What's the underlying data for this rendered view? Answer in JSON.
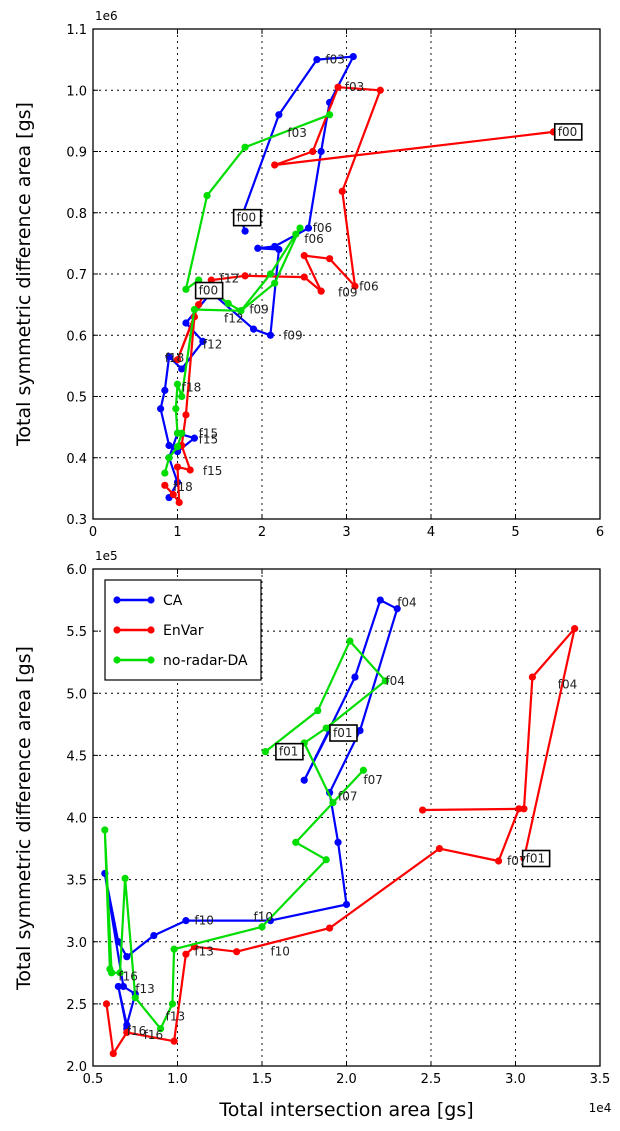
{
  "chart_data": [
    {
      "type": "line",
      "xlim": [
        0,
        60000
      ],
      "ylim": [
        300000,
        1100000
      ],
      "x_ticks": [
        0,
        10000,
        20000,
        30000,
        40000,
        50000,
        60000
      ],
      "x_tick_labels": [
        "0",
        "1",
        "2",
        "3",
        "4",
        "5",
        "6"
      ],
      "y_ticks": [
        300000,
        400000,
        500000,
        600000,
        700000,
        800000,
        900000,
        1000000,
        1100000
      ],
      "y_tick_labels": [
        "0.3",
        "0.4",
        "0.5",
        "0.6",
        "0.7",
        "0.8",
        "0.9",
        "1.0",
        "1.1"
      ],
      "x_offset_text": "",
      "y_offset_text": "1e6",
      "xlabel": "",
      "ylabel": "Total symmetric difference area [gs]",
      "grid": true,
      "series": [
        {
          "name": "CA",
          "color": "#0000ff",
          "x": [
            18000,
            17500,
            22000,
            26500,
            30800,
            28000,
            27000,
            25500,
            21500,
            19500,
            22000,
            21000,
            19000,
            14000,
            11000,
            13000,
            10500,
            9000,
            8500,
            8000,
            9000,
            10000,
            12000,
            10000,
            9000,
            10000,
            9000
          ],
          "y": [
            770000,
            790000,
            960000,
            1050000,
            1055000,
            980000,
            900000,
            775000,
            745000,
            742000,
            740000,
            600000,
            610000,
            670000,
            620000,
            590000,
            545000,
            565000,
            510000,
            480000,
            420000,
            410000,
            432000,
            440000,
            400000,
            360000,
            335000
          ]
        },
        {
          "name": "EnVar",
          "color": "#ff0000",
          "x": [
            54500,
            21500,
            26000,
            29000,
            34000,
            29500,
            31000,
            28000,
            25000,
            27000,
            25000,
            18000,
            14000,
            12500,
            10000,
            12000,
            11000,
            10500,
            11500,
            10000,
            10200,
            9500,
            8500
          ],
          "y": [
            932000,
            878000,
            900000,
            1005000,
            1000000,
            835000,
            680000,
            725000,
            730000,
            672000,
            695000,
            697000,
            690000,
            650000,
            560000,
            630000,
            470000,
            420000,
            380000,
            385000,
            327000,
            340000,
            355000
          ]
        },
        {
          "name": "no-radar-DA",
          "color": "#00dd00",
          "x": [
            28000,
            18000,
            13500,
            11000,
            12500,
            16000,
            17500,
            21000,
            24000,
            24500,
            21500,
            17500,
            12000,
            10500,
            10000,
            9800,
            10000,
            10500,
            10000,
            9000,
            8500
          ],
          "y": [
            960000,
            907000,
            828000,
            675000,
            690000,
            652000,
            640000,
            700000,
            765000,
            775000,
            685000,
            640000,
            642000,
            500000,
            520000,
            480000,
            440000,
            440000,
            418000,
            400000,
            375000
          ]
        }
      ],
      "annotations": [
        {
          "text": "f03",
          "x": 27500,
          "y": 1050000
        },
        {
          "text": "f03",
          "x": 29800,
          "y": 1005000
        },
        {
          "text": "f03",
          "x": 23000,
          "y": 930000
        },
        {
          "text": "f00",
          "x": 55000,
          "y": 932000,
          "boxed": true
        },
        {
          "text": "f00",
          "x": 17000,
          "y": 792000,
          "boxed": true
        },
        {
          "text": "f06",
          "x": 26000,
          "y": 775000
        },
        {
          "text": "f06",
          "x": 25000,
          "y": 757000
        },
        {
          "text": "f06",
          "x": 31500,
          "y": 680000
        },
        {
          "text": "f09",
          "x": 29000,
          "y": 670000
        },
        {
          "text": "f09",
          "x": 18500,
          "y": 642000
        },
        {
          "text": "f09",
          "x": 22500,
          "y": 600000
        },
        {
          "text": "f00",
          "x": 12500,
          "y": 673000,
          "boxed": true
        },
        {
          "text": "f12",
          "x": 15000,
          "y": 693000
        },
        {
          "text": "f12",
          "x": 15500,
          "y": 627000
        },
        {
          "text": "f12",
          "x": 13000,
          "y": 585000
        },
        {
          "text": "f18",
          "x": 8500,
          "y": 563000
        },
        {
          "text": "f18",
          "x": 10500,
          "y": 515000
        },
        {
          "text": "f15",
          "x": 12500,
          "y": 440000
        },
        {
          "text": "f15",
          "x": 12500,
          "y": 430000
        },
        {
          "text": "f15",
          "x": 13000,
          "y": 378000
        },
        {
          "text": "f18",
          "x": 9500,
          "y": 352000
        }
      ]
    },
    {
      "type": "line",
      "xlim": [
        5000,
        35000
      ],
      "ylim": [
        200000,
        600000
      ],
      "x_ticks": [
        5000,
        10000,
        15000,
        20000,
        25000,
        30000,
        35000
      ],
      "x_tick_labels": [
        "0.5",
        "1.0",
        "1.5",
        "2.0",
        "2.5",
        "3.0",
        "3.5"
      ],
      "y_ticks": [
        200000,
        250000,
        300000,
        350000,
        400000,
        450000,
        500000,
        550000,
        600000
      ],
      "y_tick_labels": [
        "2.0",
        "2.5",
        "3.0",
        "3.5",
        "4.0",
        "4.5",
        "5.0",
        "5.5",
        "6.0"
      ],
      "x_offset_text": "1e4",
      "y_offset_text": "1e5",
      "xlabel": "Total intersection area [gs]",
      "ylabel": "Total symmetric difference area [gs]",
      "grid": true,
      "legend_position": "top-left",
      "series": [
        {
          "name": "CA",
          "color": "#0000ff",
          "x": [
            19000,
            17500,
            20500,
            22000,
            23000,
            20800,
            19000,
            19500,
            20000,
            15500,
            10500,
            8600,
            7000,
            6500,
            5700,
            6800,
            7500,
            7000,
            6500,
            7000
          ],
          "y": [
            470000,
            430000,
            513000,
            575000,
            568000,
            470000,
            420000,
            380000,
            330000,
            317000,
            317000,
            305000,
            288000,
            300000,
            355000,
            264000,
            258000,
            233000,
            264000,
            230000
          ]
        },
        {
          "name": "EnVar",
          "color": "#ff0000",
          "x": [
            30500,
            33500,
            31000,
            30500,
            24500,
            30200,
            29000,
            25500,
            19000,
            13500,
            11000,
            10500,
            9800,
            7000,
            6200,
            5800
          ],
          "y": [
            367000,
            552000,
            513000,
            407000,
            406000,
            407000,
            365000,
            375000,
            311000,
            292000,
            296000,
            290000,
            220000,
            227000,
            210000,
            250000
          ]
        },
        {
          "name": "no-radar-DA",
          "color": "#00dd00",
          "x": [
            15200,
            18300,
            20200,
            22300,
            18800,
            17500,
            19200,
            21000,
            17000,
            18800,
            15000,
            9800,
            9700,
            9000,
            7500,
            6900,
            6600,
            6100,
            5700,
            6000
          ],
          "y": [
            453000,
            486000,
            542000,
            510000,
            472000,
            460000,
            412000,
            438000,
            380000,
            366000,
            312000,
            294000,
            250000,
            230000,
            255000,
            351000,
            275000,
            275000,
            390000,
            278000
          ]
        }
      ],
      "annotations": [
        {
          "text": "f04",
          "x": 23000,
          "y": 573000
        },
        {
          "text": "f04",
          "x": 22300,
          "y": 510000
        },
        {
          "text": "f04",
          "x": 32500,
          "y": 507000
        },
        {
          "text": "f01",
          "x": 19200,
          "y": 468000,
          "boxed": true
        },
        {
          "text": "f01",
          "x": 16000,
          "y": 453000,
          "boxed": true
        },
        {
          "text": "f01",
          "x": 30600,
          "y": 367000,
          "boxed": true
        },
        {
          "text": "f07",
          "x": 21000,
          "y": 430000
        },
        {
          "text": "f07",
          "x": 19500,
          "y": 417000
        },
        {
          "text": "f07",
          "x": 29500,
          "y": 365000
        },
        {
          "text": "f10",
          "x": 11000,
          "y": 317000
        },
        {
          "text": "f10",
          "x": 14500,
          "y": 320000
        },
        {
          "text": "f10",
          "x": 15500,
          "y": 292000
        },
        {
          "text": "f13",
          "x": 11000,
          "y": 292000
        },
        {
          "text": "f13",
          "x": 7500,
          "y": 262000
        },
        {
          "text": "f13",
          "x": 9300,
          "y": 240000
        },
        {
          "text": "f16",
          "x": 6500,
          "y": 272000
        },
        {
          "text": "f16",
          "x": 7000,
          "y": 228000
        },
        {
          "text": "f16",
          "x": 8000,
          "y": 225000
        }
      ]
    }
  ]
}
